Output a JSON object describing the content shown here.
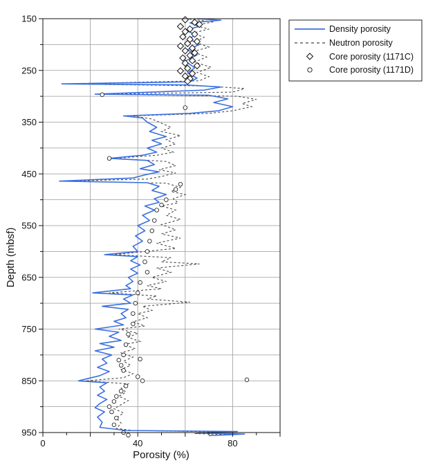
{
  "chart_data": {
    "type": "line",
    "xlabel": "Porosity (%)",
    "ylabel": "Depth (mbsf)",
    "xlim": [
      0,
      100
    ],
    "ylim": [
      950,
      150
    ],
    "x_ticks": [
      0,
      40,
      80
    ],
    "y_ticks": [
      150,
      250,
      350,
      450,
      550,
      650,
      750,
      850,
      950
    ],
    "grid": true,
    "legend_position": "outside-right-top",
    "colors": {
      "density": "#3a6fe0",
      "neutron": "#444444",
      "marker": "#111111"
    },
    "series": [
      {
        "name": "Density porosity",
        "style": "solid-line",
        "points": [
          [
            65,
            150
          ],
          [
            75,
            153
          ],
          [
            62,
            158
          ],
          [
            66,
            165
          ],
          [
            60,
            172
          ],
          [
            64,
            180
          ],
          [
            62,
            190
          ],
          [
            66,
            200
          ],
          [
            61,
            210
          ],
          [
            65,
            220
          ],
          [
            60,
            232
          ],
          [
            64,
            245
          ],
          [
            61,
            255
          ],
          [
            65,
            265
          ],
          [
            62,
            272
          ],
          [
            8,
            276
          ],
          [
            60,
            278
          ],
          [
            75,
            282
          ],
          [
            68,
            288
          ],
          [
            22,
            296
          ],
          [
            70,
            298
          ],
          [
            78,
            305
          ],
          [
            72,
            312
          ],
          [
            80,
            320
          ],
          [
            74,
            328
          ],
          [
            62,
            333
          ],
          [
            34,
            338
          ],
          [
            42,
            342
          ],
          [
            44,
            350
          ],
          [
            48,
            360
          ],
          [
            45,
            368
          ],
          [
            52,
            378
          ],
          [
            46,
            385
          ],
          [
            50,
            392
          ],
          [
            44,
            400
          ],
          [
            48,
            408
          ],
          [
            42,
            414
          ],
          [
            28,
            420
          ],
          [
            44,
            424
          ],
          [
            47,
            432
          ],
          [
            41,
            440
          ],
          [
            49,
            446
          ],
          [
            43,
            452
          ],
          [
            38,
            458
          ],
          [
            7,
            464
          ],
          [
            44,
            467
          ],
          [
            49,
            474
          ],
          [
            46,
            482
          ],
          [
            52,
            490
          ],
          [
            47,
            498
          ],
          [
            49,
            505
          ],
          [
            43,
            512
          ],
          [
            47,
            520
          ],
          [
            42,
            530
          ],
          [
            45,
            540
          ],
          [
            40,
            550
          ],
          [
            43,
            560
          ],
          [
            39,
            570
          ],
          [
            42,
            580
          ],
          [
            38,
            590
          ],
          [
            40,
            600
          ],
          [
            26,
            606
          ],
          [
            40,
            610
          ],
          [
            37,
            618
          ],
          [
            41,
            626
          ],
          [
            37,
            634
          ],
          [
            40,
            642
          ],
          [
            36,
            650
          ],
          [
            38,
            658
          ],
          [
            35,
            666
          ],
          [
            37,
            672
          ],
          [
            21,
            680
          ],
          [
            38,
            684
          ],
          [
            34,
            692
          ],
          [
            37,
            700
          ],
          [
            25,
            706
          ],
          [
            36,
            712
          ],
          [
            33,
            720
          ],
          [
            35,
            728
          ],
          [
            30,
            735
          ],
          [
            34,
            742
          ],
          [
            22,
            750
          ],
          [
            32,
            756
          ],
          [
            28,
            764
          ],
          [
            33,
            772
          ],
          [
            24,
            778
          ],
          [
            30,
            785
          ],
          [
            22,
            792
          ],
          [
            29,
            800
          ],
          [
            25,
            808
          ],
          [
            27,
            816
          ],
          [
            23,
            824
          ],
          [
            28,
            832
          ],
          [
            24,
            840
          ],
          [
            15,
            850
          ],
          [
            27,
            854
          ],
          [
            24,
            862
          ],
          [
            26,
            870
          ],
          [
            23,
            878
          ],
          [
            27,
            886
          ],
          [
            24,
            894
          ],
          [
            22,
            902
          ],
          [
            26,
            910
          ],
          [
            23,
            920
          ],
          [
            25,
            930
          ],
          [
            24,
            940
          ],
          [
            35,
            946
          ],
          [
            82,
            948
          ],
          [
            65,
            951
          ],
          [
            85,
            953
          ],
          [
            70,
            956
          ]
        ]
      },
      {
        "name": "Neutron porosity",
        "style": "dashed-line",
        "points": [
          [
            60,
            150
          ],
          [
            72,
            156
          ],
          [
            64,
            163
          ],
          [
            70,
            170
          ],
          [
            63,
            178
          ],
          [
            68,
            186
          ],
          [
            64,
            195
          ],
          [
            70,
            205
          ],
          [
            63,
            214
          ],
          [
            69,
            224
          ],
          [
            64,
            234
          ],
          [
            71,
            244
          ],
          [
            65,
            254
          ],
          [
            70,
            262
          ],
          [
            66,
            270
          ],
          [
            10,
            276
          ],
          [
            68,
            280
          ],
          [
            85,
            285
          ],
          [
            80,
            292
          ],
          [
            25,
            296
          ],
          [
            82,
            300
          ],
          [
            90,
            306
          ],
          [
            84,
            314
          ],
          [
            88,
            320
          ],
          [
            80,
            328
          ],
          [
            70,
            333
          ],
          [
            38,
            338
          ],
          [
            46,
            344
          ],
          [
            50,
            352
          ],
          [
            54,
            360
          ],
          [
            50,
            368
          ],
          [
            58,
            376
          ],
          [
            52,
            384
          ],
          [
            56,
            392
          ],
          [
            50,
            400
          ],
          [
            55,
            408
          ],
          [
            48,
            414
          ],
          [
            30,
            420
          ],
          [
            52,
            426
          ],
          [
            56,
            434
          ],
          [
            49,
            442
          ],
          [
            56,
            448
          ],
          [
            50,
            455
          ],
          [
            44,
            460
          ],
          [
            10,
            464
          ],
          [
            52,
            468
          ],
          [
            58,
            476
          ],
          [
            54,
            484
          ],
          [
            60,
            490
          ],
          [
            55,
            498
          ],
          [
            57,
            506
          ],
          [
            50,
            512
          ],
          [
            56,
            520
          ],
          [
            52,
            530
          ],
          [
            58,
            538
          ],
          [
            50,
            548
          ],
          [
            56,
            558
          ],
          [
            50,
            566
          ],
          [
            58,
            574
          ],
          [
            48,
            584
          ],
          [
            56,
            594
          ],
          [
            30,
            606
          ],
          [
            54,
            612
          ],
          [
            50,
            620
          ],
          [
            66,
            624
          ],
          [
            48,
            632
          ],
          [
            54,
            640
          ],
          [
            46,
            650
          ],
          [
            52,
            658
          ],
          [
            44,
            666
          ],
          [
            50,
            672
          ],
          [
            28,
            680
          ],
          [
            48,
            686
          ],
          [
            44,
            692
          ],
          [
            62,
            698
          ],
          [
            42,
            706
          ],
          [
            46,
            714
          ],
          [
            40,
            720
          ],
          [
            44,
            728
          ],
          [
            38,
            736
          ],
          [
            43,
            744
          ],
          [
            32,
            750
          ],
          [
            40,
            758
          ],
          [
            36,
            766
          ],
          [
            41,
            774
          ],
          [
            34,
            780
          ],
          [
            39,
            788
          ],
          [
            33,
            796
          ],
          [
            38,
            804
          ],
          [
            34,
            812
          ],
          [
            37,
            820
          ],
          [
            33,
            828
          ],
          [
            38,
            836
          ],
          [
            34,
            844
          ],
          [
            18,
            850
          ],
          [
            36,
            856
          ],
          [
            33,
            864
          ],
          [
            35,
            872
          ],
          [
            32,
            880
          ],
          [
            36,
            888
          ],
          [
            33,
            896
          ],
          [
            30,
            904
          ],
          [
            34,
            912
          ],
          [
            31,
            922
          ],
          [
            33,
            932
          ],
          [
            31,
            942
          ],
          [
            38,
            946
          ],
          [
            78,
            949
          ],
          [
            64,
            952
          ],
          [
            80,
            954
          ],
          [
            70,
            956
          ]
        ]
      },
      {
        "name": "Core porosity (1171C)",
        "style": "diamond",
        "points": [
          [
            60,
            152
          ],
          [
            64,
            157
          ],
          [
            66,
            161
          ],
          [
            58,
            165
          ],
          [
            62,
            170
          ],
          [
            60,
            175
          ],
          [
            64,
            180
          ],
          [
            59,
            185
          ],
          [
            62,
            190
          ],
          [
            65,
            194
          ],
          [
            61,
            198
          ],
          [
            58,
            203
          ],
          [
            63,
            207
          ],
          [
            60,
            212
          ],
          [
            64,
            216
          ],
          [
            62,
            221
          ],
          [
            59,
            226
          ],
          [
            63,
            231
          ],
          [
            60,
            236
          ],
          [
            65,
            241
          ],
          [
            61,
            246
          ],
          [
            58,
            251
          ],
          [
            63,
            256
          ],
          [
            60,
            261
          ],
          [
            62,
            266
          ],
          [
            61,
            271
          ]
        ]
      },
      {
        "name": "Core porosity (1171D)",
        "style": "circle",
        "points": [
          [
            25,
            297
          ],
          [
            60,
            322
          ],
          [
            28,
            420
          ],
          [
            58,
            470
          ],
          [
            56,
            480
          ],
          [
            52,
            500
          ],
          [
            50,
            510
          ],
          [
            48,
            520
          ],
          [
            47,
            540
          ],
          [
            46,
            560
          ],
          [
            45,
            580
          ],
          [
            44,
            600
          ],
          [
            43,
            620
          ],
          [
            44,
            640
          ],
          [
            41,
            660
          ],
          [
            40,
            680
          ],
          [
            39,
            700
          ],
          [
            38,
            720
          ],
          [
            38,
            740
          ],
          [
            36,
            760
          ],
          [
            35,
            780
          ],
          [
            34,
            800
          ],
          [
            33,
            820
          ],
          [
            34,
            830
          ],
          [
            40,
            842
          ],
          [
            42,
            850
          ],
          [
            35,
            860
          ],
          [
            33,
            870
          ],
          [
            31,
            880
          ],
          [
            30,
            890
          ],
          [
            28,
            900
          ],
          [
            29,
            910
          ],
          [
            31,
            922
          ],
          [
            30,
            935
          ],
          [
            34,
            950
          ],
          [
            36,
            955
          ],
          [
            86,
            848
          ],
          [
            32,
            810
          ],
          [
            41,
            808
          ]
        ]
      }
    ]
  }
}
